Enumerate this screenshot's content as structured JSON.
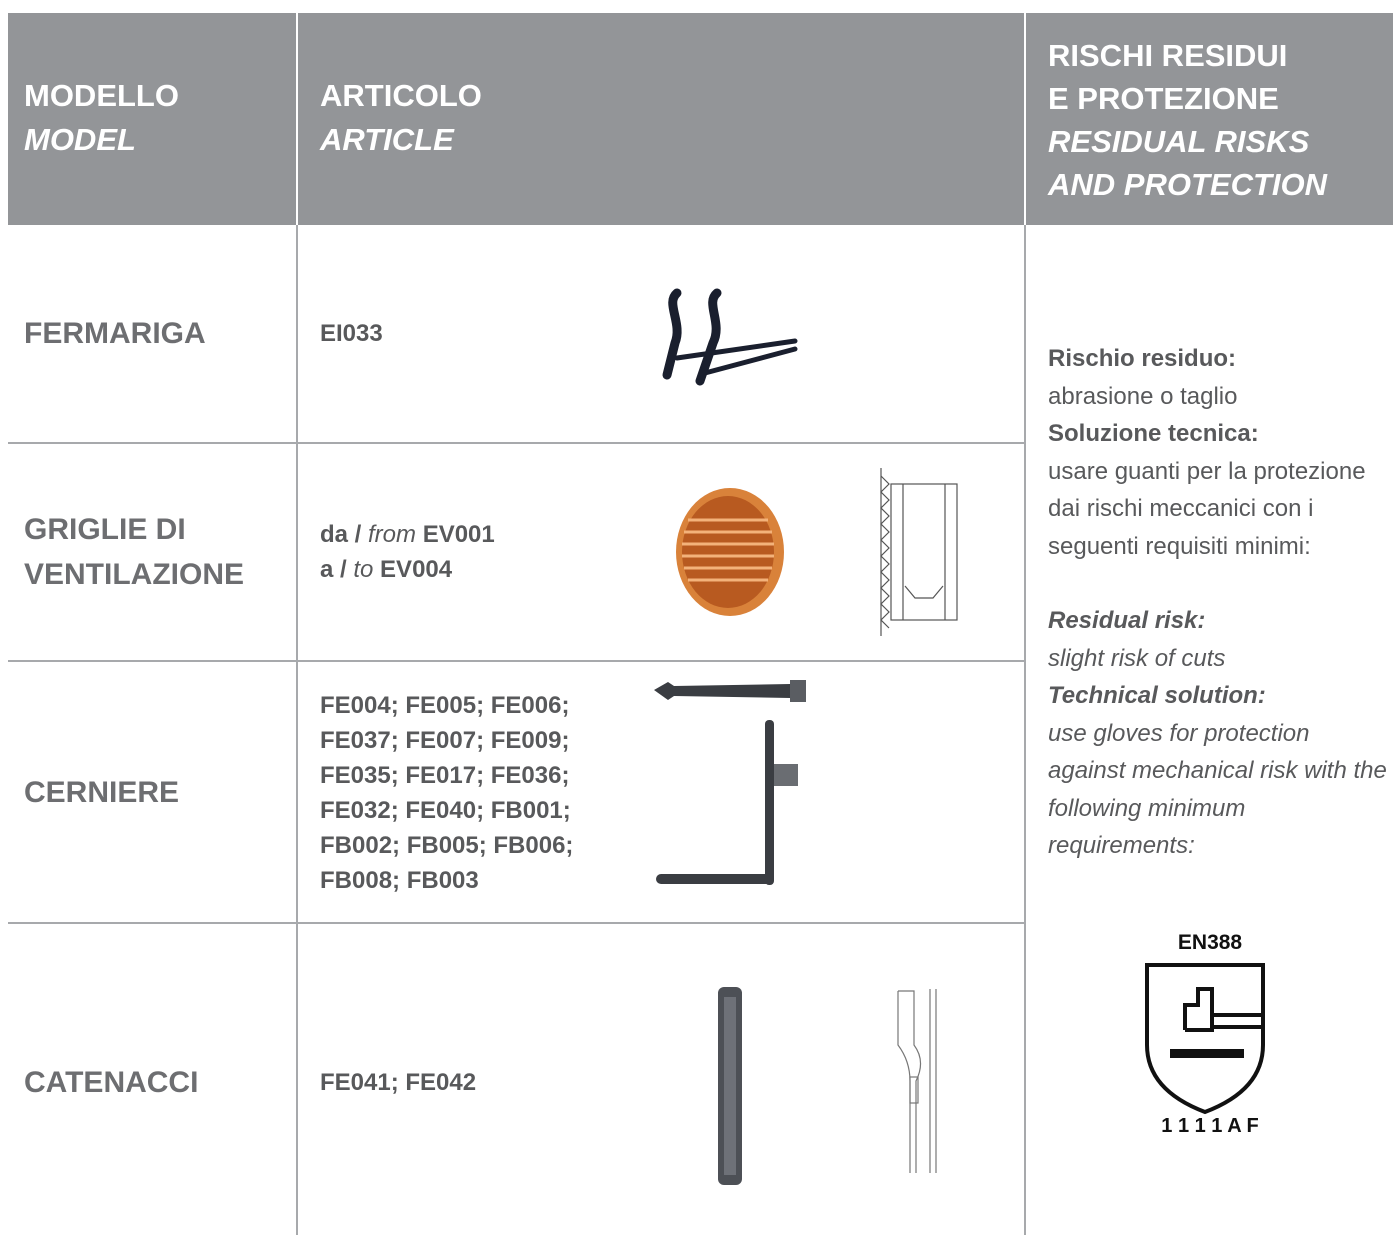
{
  "header": {
    "model": [
      "MODELLO",
      "MODEL"
    ],
    "article": [
      "ARTICOLO",
      "ARTICLE"
    ],
    "risks": [
      "RISCHI RESIDUI",
      "E PROTEZIONE",
      "RESIDUAL RISKS",
      "AND PROTECTION"
    ]
  },
  "rows": [
    {
      "model": "FERMARIGA",
      "article": [
        "EI033"
      ]
    },
    {
      "model": "GRIGLIE DI VENTILAZIONE",
      "article": [
        {
          "prefix": "da /",
          "word": "from",
          "code": "EV001"
        },
        {
          "prefix": "a /",
          "word": "to",
          "code": "EV004"
        }
      ]
    },
    {
      "model": "CERNIERE",
      "article": [
        "FE004; FE005; FE006;",
        "FE037; FE007; FE009;",
        "FE035; FE017; FE036;",
        "FE032; FE040; FB001;",
        "FB002; FB005; FB006;",
        "FB008; FB003"
      ]
    },
    {
      "model": "CATENACCI",
      "article": [
        "FE041; FE042"
      ]
    }
  ],
  "risks": {
    "it": {
      "risk_label": "Rischio residuo:",
      "risk": "abrasione o taglio",
      "solution_label": "Soluzione tecnica:",
      "solution": "usare guanti per la protezione dai rischi meccanici con i seguenti requisiti minimi:"
    },
    "en": {
      "risk_label": "Residual risk:",
      "risk": "slight risk of cuts",
      "solution_label": "Technical solution:",
      "solution": "use gloves for protection against mechanical risk with the following minimum requirements:"
    },
    "badge": {
      "title": "EN388",
      "code": "1 1 1 1 A F"
    }
  }
}
